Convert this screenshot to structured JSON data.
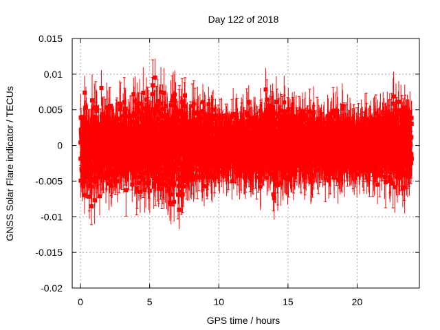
{
  "chart_data": {
    "type": "scatter",
    "title": "Day 122 of 2018",
    "xlabel": "GPS time / hours",
    "ylabel": "GNSS Solar Flare indicator / TECUs",
    "xlim": [
      -0.6,
      24.5
    ],
    "ylim": [
      -0.02,
      0.015
    ],
    "xticks": [
      0,
      5,
      10,
      15,
      20
    ],
    "xtick_labels": [
      "0",
      "5",
      "10",
      "15",
      "20"
    ],
    "yticks": [
      -0.02,
      -0.015,
      -0.01,
      -0.005,
      0,
      0.005,
      0.01,
      0.015
    ],
    "ytick_labels": [
      "-0.02",
      "-0.015",
      "-0.01",
      "-0.005",
      "0",
      "0.005",
      "0.01",
      "0.015"
    ],
    "grid": true,
    "series": [
      {
        "name": "GNSS Solar Flare indicator",
        "color": "#ff0000",
        "marker": "square",
        "error_bars": true,
        "x_start": 0.0,
        "x_end": 23.95,
        "sample_count": 2880,
        "typical_error": 0.003,
        "envelope": [
          {
            "hour": 0,
            "low": -0.0095,
            "high": 0.009
          },
          {
            "hour": 1,
            "low": -0.011,
            "high": 0.0095
          },
          {
            "hour": 2,
            "low": -0.0085,
            "high": 0.0085
          },
          {
            "hour": 3,
            "low": -0.009,
            "high": 0.0085
          },
          {
            "hour": 4,
            "low": -0.01,
            "high": 0.0095
          },
          {
            "hour": 5,
            "low": -0.0105,
            "high": 0.0095
          },
          {
            "hour": 6,
            "low": -0.012,
            "high": 0.011
          },
          {
            "hour": 7,
            "low": -0.0125,
            "high": 0.0105
          },
          {
            "hour": 8,
            "low": -0.0095,
            "high": 0.009
          },
          {
            "hour": 9,
            "low": -0.008,
            "high": 0.0085
          },
          {
            "hour": 10,
            "low": -0.0065,
            "high": 0.0065
          },
          {
            "hour": 11,
            "low": -0.006,
            "high": 0.006
          },
          {
            "hour": 12,
            "low": -0.0065,
            "high": 0.007
          },
          {
            "hour": 13,
            "low": -0.0075,
            "high": 0.008
          },
          {
            "hour": 14,
            "low": -0.009,
            "high": 0.0105
          },
          {
            "hour": 15,
            "low": -0.008,
            "high": 0.0085
          },
          {
            "hour": 16,
            "low": -0.0075,
            "high": 0.0075
          },
          {
            "hour": 17,
            "low": -0.0065,
            "high": 0.0065
          },
          {
            "hour": 18,
            "low": -0.0065,
            "high": 0.007
          },
          {
            "hour": 19,
            "low": -0.0065,
            "high": 0.0065
          },
          {
            "hour": 20,
            "low": -0.0055,
            "high": 0.0055
          },
          {
            "hour": 21,
            "low": -0.0065,
            "high": 0.0065
          },
          {
            "hour": 22,
            "low": -0.0075,
            "high": 0.0075
          },
          {
            "hour": 23,
            "low": -0.009,
            "high": 0.009
          },
          {
            "hour": 24,
            "low": -0.0085,
            "high": 0.009
          }
        ]
      }
    ]
  }
}
